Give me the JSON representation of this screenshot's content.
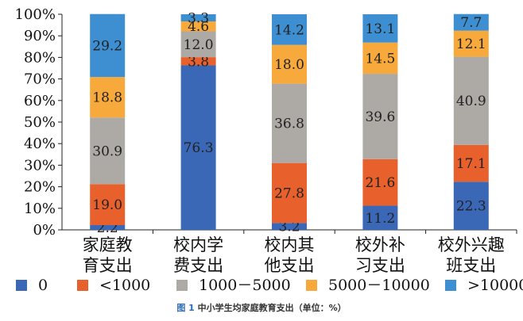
{
  "chart_data": {
    "type": "bar",
    "stacked": true,
    "percent": true,
    "categories": [
      [
        "家庭教",
        "育支出"
      ],
      [
        "校内学",
        "费支出"
      ],
      [
        "校内其",
        "他支出"
      ],
      [
        "校外补",
        "习支出"
      ],
      [
        "校外兴趣",
        "班支出"
      ]
    ],
    "series": [
      {
        "name": "0",
        "color": "#3a67b6",
        "values": [
          2.2,
          76.3,
          3.2,
          11.2,
          22.3
        ]
      },
      {
        "name": "<1000",
        "color": "#e8602c",
        "values": [
          19.0,
          3.8,
          27.8,
          21.6,
          17.1
        ]
      },
      {
        "name": "1000－5000",
        "color": "#adaaa5",
        "values": [
          30.9,
          12.0,
          36.8,
          39.6,
          40.9
        ]
      },
      {
        "name": "5000－10000",
        "color": "#f7a93b",
        "values": [
          18.8,
          4.6,
          18.0,
          14.5,
          12.1
        ]
      },
      {
        "name": ">10000",
        "color": "#3d8fd1",
        "values": [
          29.2,
          3.3,
          14.2,
          13.1,
          7.7
        ]
      }
    ],
    "yticks": [
      "0%",
      "10%",
      "20%",
      "30%",
      "40%",
      "50%",
      "60%",
      "70%",
      "80%",
      "90%",
      "100%"
    ],
    "ylim": [
      0,
      100
    ],
    "legend_position": "bottom",
    "caption_prefix": "图 1",
    "caption_text": "中小学生均家庭教育支出（单位：%）"
  }
}
